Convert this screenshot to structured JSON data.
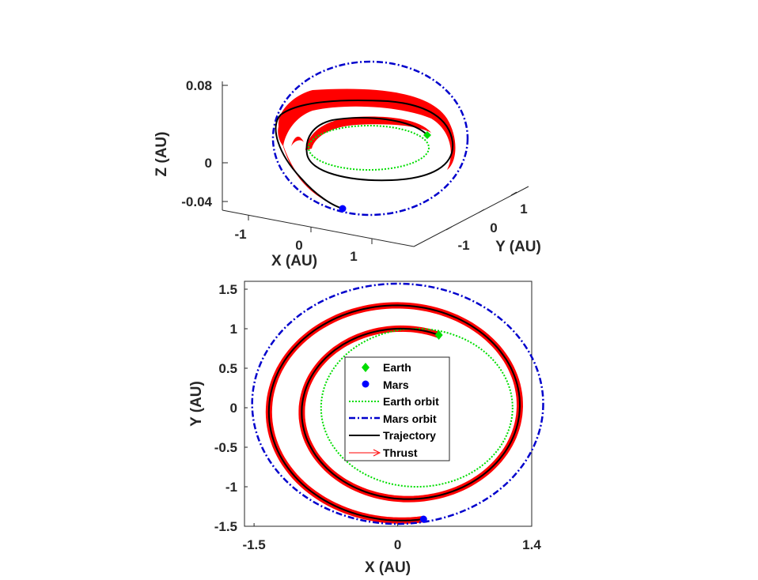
{
  "chart_data": [
    {
      "type": "line",
      "view": "3d",
      "xlabel": "X (AU)",
      "ylabel": "Y (AU)",
      "zlabel": "Z (AU)",
      "xticks": [
        "-1",
        "0",
        "1"
      ],
      "yticks": [
        "-1",
        "0",
        "1"
      ],
      "zticks": [
        "0.08",
        "0",
        "-0.04"
      ],
      "series": [
        {
          "name": "Earth orbit",
          "color": "#00dd00",
          "style": "dotted"
        },
        {
          "name": "Mars orbit",
          "color": "#0000cc",
          "style": "dash-dot"
        },
        {
          "name": "Trajectory",
          "color": "#000000",
          "style": "solid"
        },
        {
          "name": "Thrust",
          "color": "#ff0000",
          "style": "arrows"
        },
        {
          "name": "Earth",
          "color": "#00dd00",
          "marker": "diamond"
        },
        {
          "name": "Mars",
          "color": "#0000ff",
          "marker": "circle"
        }
      ]
    },
    {
      "type": "line",
      "view": "2d",
      "xlabel": "X (AU)",
      "ylabel": "Y (AU)",
      "xlim": [
        -1.6,
        1.4
      ],
      "ylim": [
        -1.5,
        1.6
      ],
      "xticks": [
        "-1.5",
        "0",
        "1.4"
      ],
      "yticks": [
        "1.5",
        "1",
        "0.5",
        "0",
        "-0.5",
        "-1",
        "-1.5"
      ],
      "earth_orbit": {
        "center": [
          0.2,
          0
        ],
        "radius": 1.0
      },
      "mars_orbit": {
        "center": [
          0.0,
          0.05
        ],
        "rx": 1.52,
        "ry": 1.52
      },
      "earth_position": {
        "x": 0.43,
        "y": 0.92
      },
      "mars_position": {
        "x": 0.27,
        "y": -1.41
      },
      "trajectory_note": "spiral from Earth to Mars, about 1.5 revolutions",
      "legend": {
        "placement": "center",
        "entries": [
          {
            "label": "Earth",
            "color": "#00dd00",
            "marker": "diamond"
          },
          {
            "label": "Mars",
            "color": "#0000ff",
            "marker": "circle"
          },
          {
            "label": "Earth orbit",
            "color": "#00dd00",
            "style": "dotted"
          },
          {
            "label": "Mars orbit",
            "color": "#0000cc",
            "style": "dash-dot"
          },
          {
            "label": "Trajectory",
            "color": "#000000",
            "style": "solid"
          },
          {
            "label": "Thrust",
            "color": "#ff0000",
            "style": "arrow"
          }
        ]
      }
    }
  ]
}
